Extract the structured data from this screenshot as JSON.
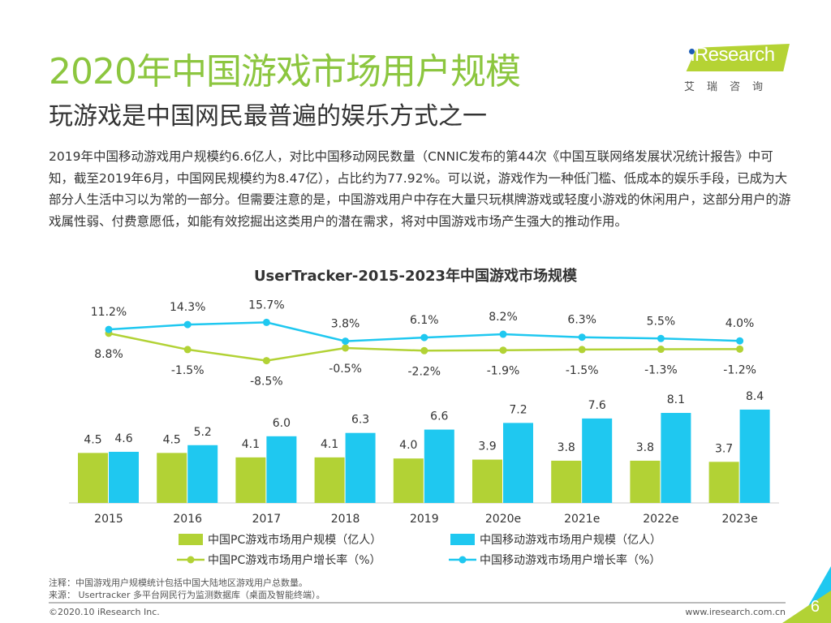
{
  "title": "2020年中国游戏市场用户规模",
  "subtitle": "玩游戏是中国网民最普遍的娱乐方式之一",
  "body": "2019年中国移动游戏用户规模约6.6亿人，对比中国移动网民数量（CNNIC发布的第44次《中国互联网络发展状况统计报告》中可知，截至2019年6月，中国网民规模约为8.47亿），占比约为77.92%。可以说，游戏作为一种低门槛、低成本的娱乐手段，已成为大部分人生活中习以为常的一部分。但需要注意的是，中国游戏用户中存在大量只玩棋牌游戏或轻度小游戏的休闲用户，这部分用户的游戏属性弱、付费意愿低，如能有效挖掘出这类用户的潜在需求，将对中国游戏市场产生强大的推动作用。",
  "logo": {
    "en": "iResearch",
    "cn": "艾瑞咨询"
  },
  "chart_data": {
    "type": "bar+line",
    "title": "UserTracker-2015-2023年中国游戏市场规模",
    "categories": [
      "2015",
      "2016",
      "2017",
      "2018",
      "2019",
      "2020e",
      "2021e",
      "2022e",
      "2023e"
    ],
    "series": [
      {
        "name": "中国PC游戏市场用户规模（亿人）",
        "type": "bar",
        "color": "#b2d235",
        "values": [
          4.5,
          4.5,
          4.1,
          4.1,
          4.0,
          3.9,
          3.8,
          3.8,
          3.7
        ]
      },
      {
        "name": "中国移动游戏市场用户规模（亿人）",
        "type": "bar",
        "color": "#1fc8f0",
        "values": [
          4.6,
          5.2,
          6.0,
          6.3,
          6.6,
          7.2,
          7.6,
          8.1,
          8.4
        ]
      },
      {
        "name": "中国PC游戏市场用户增长率（%）",
        "type": "line",
        "color": "#b2d235",
        "values": [
          8.8,
          -1.5,
          -8.5,
          -0.5,
          -2.2,
          -1.9,
          -1.5,
          -1.3,
          -1.2
        ]
      },
      {
        "name": "中国移动游戏市场用户增长率（%）",
        "type": "line",
        "color": "#1fc8f0",
        "values": [
          11.2,
          14.3,
          15.7,
          3.8,
          6.1,
          8.2,
          6.3,
          5.5,
          4.0
        ]
      }
    ],
    "legend_position": "bottom",
    "grid": false
  },
  "notes": {
    "note": "注释：中国游戏用户规模统计包括中国大陆地区游戏用户总数量。",
    "source": "来源： Usertracker 多平台网民行为监测数据库（桌面及智能终端）。"
  },
  "footer": {
    "copyright": "©2020.10 iResearch Inc.",
    "url": "www.iresearch.com.cn",
    "page": "6"
  }
}
